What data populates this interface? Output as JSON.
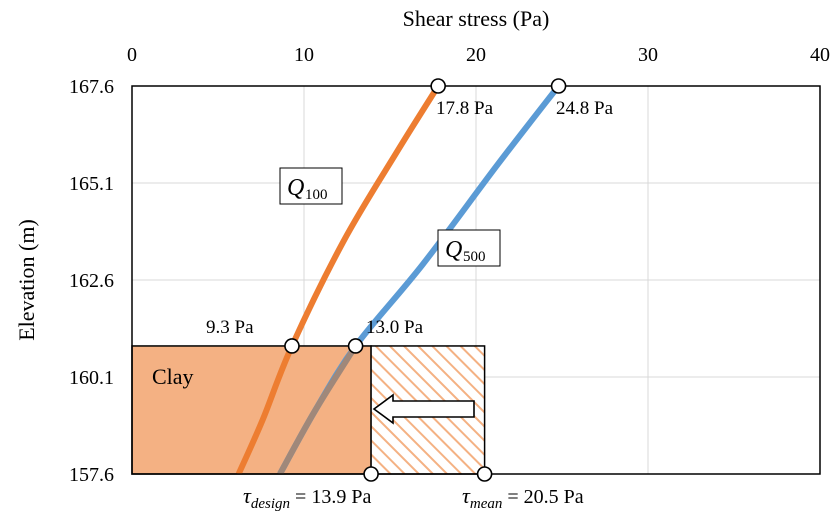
{
  "chart_data": {
    "type": "line",
    "title": "",
    "xlabel": "Shear stress (Pa)",
    "ylabel": "Elevation (m)",
    "xlim": [
      0,
      40
    ],
    "ylim": [
      157.6,
      167.6
    ],
    "x_ticks": [
      "0",
      "10",
      "20",
      "30",
      "40"
    ],
    "y_ticks": [
      "167.6",
      "165.1",
      "162.6",
      "160.1",
      "157.6"
    ],
    "x_axis_position": "top",
    "grid": true,
    "series": [
      {
        "name": "Q100",
        "color": "#ed7d31",
        "points": [
          [
            6.2,
            157.6
          ],
          [
            7.6,
            159.0
          ],
          [
            9.3,
            160.9
          ],
          [
            12.3,
            163.6
          ],
          [
            15.4,
            165.9
          ],
          [
            17.8,
            167.6
          ]
        ]
      },
      {
        "name": "Q500",
        "color": "#5b9bd5",
        "points": [
          [
            8.6,
            157.6
          ],
          [
            10.6,
            159.2
          ],
          [
            13.0,
            160.9
          ],
          [
            16.9,
            163.0
          ],
          [
            21.3,
            165.6
          ],
          [
            24.8,
            167.6
          ]
        ]
      }
    ],
    "series_labels": {
      "q100": {
        "main": "Q",
        "sub": "100"
      },
      "q500": {
        "main": "Q",
        "sub": "500"
      }
    },
    "markers": [
      {
        "x": 17.8,
        "y": 167.6,
        "label": "17.8 Pa"
      },
      {
        "x": 24.8,
        "y": 167.6,
        "label": "24.8 Pa"
      },
      {
        "x": 9.3,
        "y": 160.9,
        "label": "9.3 Pa"
      },
      {
        "x": 13.0,
        "y": 160.9,
        "label": "13.0 Pa"
      },
      {
        "x": 13.9,
        "y": 157.6
      },
      {
        "x": 20.5,
        "y": 157.6
      }
    ],
    "clay_layer": {
      "label": "Clay",
      "x": [
        0,
        13.9
      ],
      "y": [
        157.6,
        160.9
      ],
      "color": "#f4b183"
    },
    "hatched_region": {
      "x": [
        13.9,
        20.5
      ],
      "y": [
        157.6,
        160.9
      ],
      "color": "#f4b183"
    },
    "bottom_annotations": {
      "design": {
        "symbol": "τ",
        "sub": "design",
        "text": " = 13.9 Pa"
      },
      "mean": {
        "symbol": "τ",
        "sub": "mean",
        "text": " = 20.5 Pa"
      }
    },
    "colors": {
      "overlap_line": "#a0887a",
      "grid": "#d9d9d9"
    }
  }
}
